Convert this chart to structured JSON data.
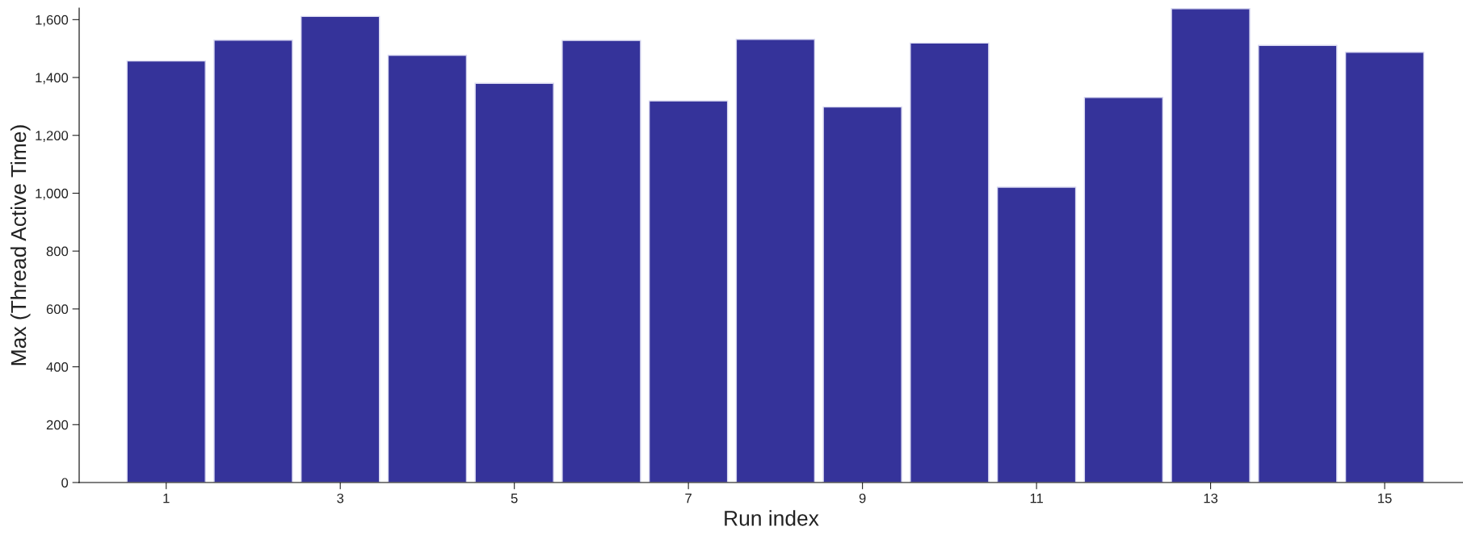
{
  "chart_data": {
    "type": "bar",
    "xlabel": "Run index",
    "ylabel": "Max (Thread Active Time)",
    "x": [
      1,
      2,
      3,
      4,
      5,
      6,
      7,
      8,
      9,
      10,
      11,
      12,
      13,
      14,
      15
    ],
    "values": [
      1457,
      1529,
      1611,
      1477,
      1380,
      1528,
      1319,
      1532,
      1298,
      1519,
      1021,
      1331,
      1638,
      1511,
      1487
    ],
    "color": "#35339a",
    "xlim": [
      0,
      15.9
    ],
    "xticks": [
      1,
      3,
      5,
      7,
      9,
      11,
      13,
      15
    ],
    "ylim": [
      0,
      1640
    ],
    "yticks": [
      {
        "value": 0,
        "label": "0"
      },
      {
        "value": 200,
        "label": "200"
      },
      {
        "value": 400,
        "label": "400"
      },
      {
        "value": 600,
        "label": "600"
      },
      {
        "value": 800,
        "label": "800"
      },
      {
        "value": 1000,
        "label": "1,000"
      },
      {
        "value": 1200,
        "label": "1,200"
      },
      {
        "value": 1400,
        "label": "1,400"
      },
      {
        "value": 1600,
        "label": "1,600"
      }
    ],
    "grid": false,
    "legend": false
  }
}
